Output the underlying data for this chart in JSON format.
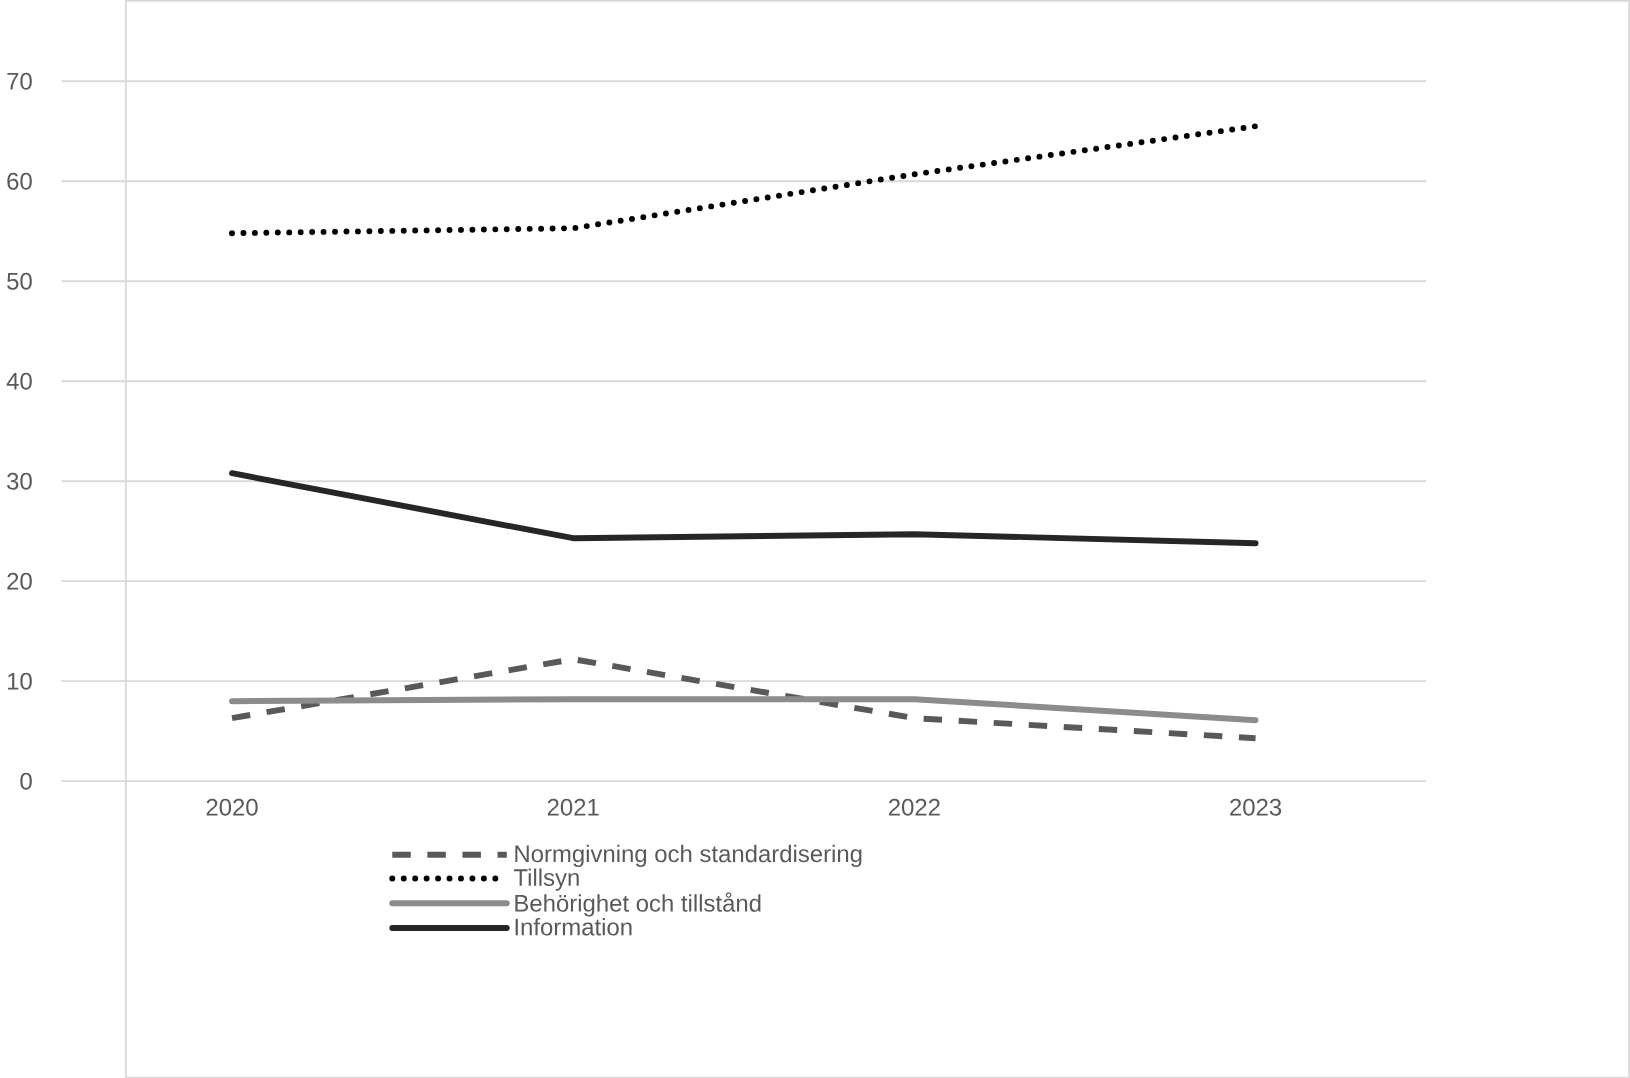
{
  "chart_data": {
    "type": "line",
    "categories": [
      "2020",
      "2021",
      "2022",
      "2023"
    ],
    "series": [
      {
        "name": "Normgivning och standardisering",
        "color": "#595959",
        "line_style": "dashed",
        "values": [
          6.3,
          12.2,
          6.3,
          4.3
        ]
      },
      {
        "name": "Tillsyn",
        "color": "#000000",
        "line_style": "dotted",
        "values": [
          54.8,
          55.3,
          60.7,
          65.5
        ]
      },
      {
        "name": "Behörighet och tillstånd",
        "color": "#8c8c8c",
        "line_style": "solid",
        "values": [
          8.0,
          8.2,
          8.2,
          6.1
        ]
      },
      {
        "name": "Information",
        "color": "#262626",
        "line_style": "solid",
        "values": [
          30.8,
          24.3,
          24.7,
          23.8
        ]
      }
    ],
    "ylim": [
      0,
      70
    ],
    "yticks": [
      0,
      10,
      20,
      30,
      40,
      50,
      60,
      70
    ],
    "grid": "y",
    "legend": "bottom",
    "marker": "none"
  }
}
